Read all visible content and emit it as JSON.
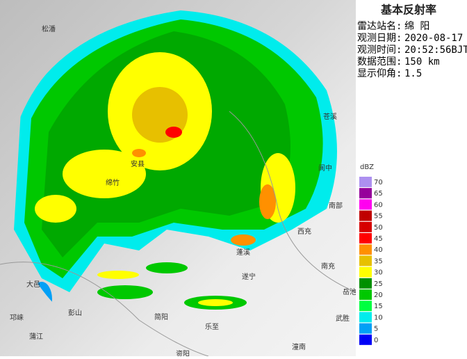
{
  "title": "基本反射率",
  "info": [
    {
      "label": "雷达站名:",
      "value": "绵 阳"
    },
    {
      "label": "观测日期:",
      "value": "2020-08-17"
    },
    {
      "label": "观测时间:",
      "value": "20:52:56BJT"
    },
    {
      "label": "数据范围:",
      "value": "150 km"
    },
    {
      "label": "显示仰角:",
      "value": "1.5"
    }
  ],
  "legend": {
    "unit": "dBZ",
    "levels": [
      {
        "value": 70,
        "color": "#ad90f0"
      },
      {
        "value": 65,
        "color": "#96009b"
      },
      {
        "value": 60,
        "color": "#ff00f0"
      },
      {
        "value": 55,
        "color": "#c00000"
      },
      {
        "value": 50,
        "color": "#d60000"
      },
      {
        "value": 45,
        "color": "#ff0000"
      },
      {
        "value": 40,
        "color": "#ff9000"
      },
      {
        "value": 35,
        "color": "#e7c000"
      },
      {
        "value": 30,
        "color": "#ffff00"
      },
      {
        "value": 25,
        "color": "#009000"
      },
      {
        "value": 20,
        "color": "#00c800"
      },
      {
        "value": 15,
        "color": "#00ff40"
      },
      {
        "value": 10,
        "color": "#00ecec"
      },
      {
        "value": 5,
        "color": "#01a0f6"
      },
      {
        "value": 0,
        "color": "#0000f6"
      }
    ]
  },
  "places": [
    "松潘",
    "安县",
    "绵竹",
    "苍溪",
    "阆中",
    "南部",
    "西充",
    "南充",
    "蓬溪",
    "遂宁",
    "武胜",
    "岳池",
    "乐至",
    "简阳",
    "资阳",
    "大邑",
    "邛崃",
    "蒲江",
    "彭山",
    "潼南"
  ]
}
